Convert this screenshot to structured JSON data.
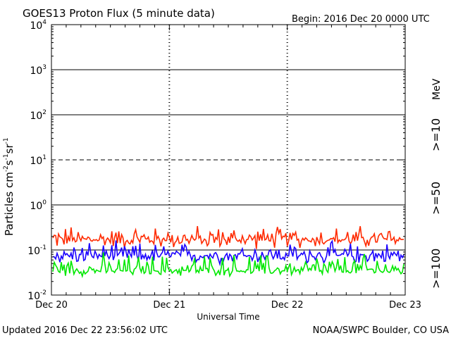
{
  "title": "GOES13 Proton Flux (5 minute data)",
  "begin": "Begin: 2016 Dec 20 0000 UTC",
  "footer_left": "Updated 2016 Dec 22 23:56:02 UTC",
  "footer_right": "NOAA/SWPC Boulder, CO USA",
  "chart_data": {
    "type": "line",
    "title": "GOES13 Proton Flux (5 minute data)",
    "xlabel": "Universal Time",
    "ylabel_base": "Particles cm",
    "ylabel_units": [
      "-2",
      "s",
      "-1",
      "sr",
      "-1"
    ],
    "y_scale": "log",
    "ylim": [
      0.01,
      10000
    ],
    "yticks": [
      {
        "value": 10000,
        "base": "10",
        "exp": "4"
      },
      {
        "value": 1000,
        "base": "10",
        "exp": "3"
      },
      {
        "value": 100,
        "base": "10",
        "exp": "2"
      },
      {
        "value": 10,
        "base": "10",
        "exp": "1"
      },
      {
        "value": 1,
        "base": "10",
        "exp": "0"
      },
      {
        "value": 0.1,
        "base": "10",
        "exp": "-1"
      },
      {
        "value": 0.01,
        "base": "10",
        "exp": "-2"
      }
    ],
    "xlim": [
      "2016-12-20",
      "2016-12-23"
    ],
    "xticks": [
      "Dec 20",
      "Dec 21",
      "Dec 22",
      "Dec 23"
    ],
    "horizontal_lines": [
      {
        "value": 1000,
        "style": "solid"
      },
      {
        "value": 100,
        "style": "solid"
      },
      {
        "value": 10,
        "style": "dashed"
      },
      {
        "value": 1,
        "style": "solid"
      },
      {
        "value": 0.1,
        "style": "solid"
      }
    ],
    "series": [
      {
        "name": ">=10",
        "color": "#ff2a00",
        "base": 0.17,
        "min": 0.1,
        "max": 0.4
      },
      {
        "name": ">=50",
        "color": "#1a00ff",
        "base": 0.075,
        "min": 0.045,
        "max": 0.17
      },
      {
        "name": ">=100",
        "color": "#00e800",
        "base": 0.035,
        "min": 0.025,
        "max": 0.1
      }
    ],
    "unit_label": "MeV"
  }
}
